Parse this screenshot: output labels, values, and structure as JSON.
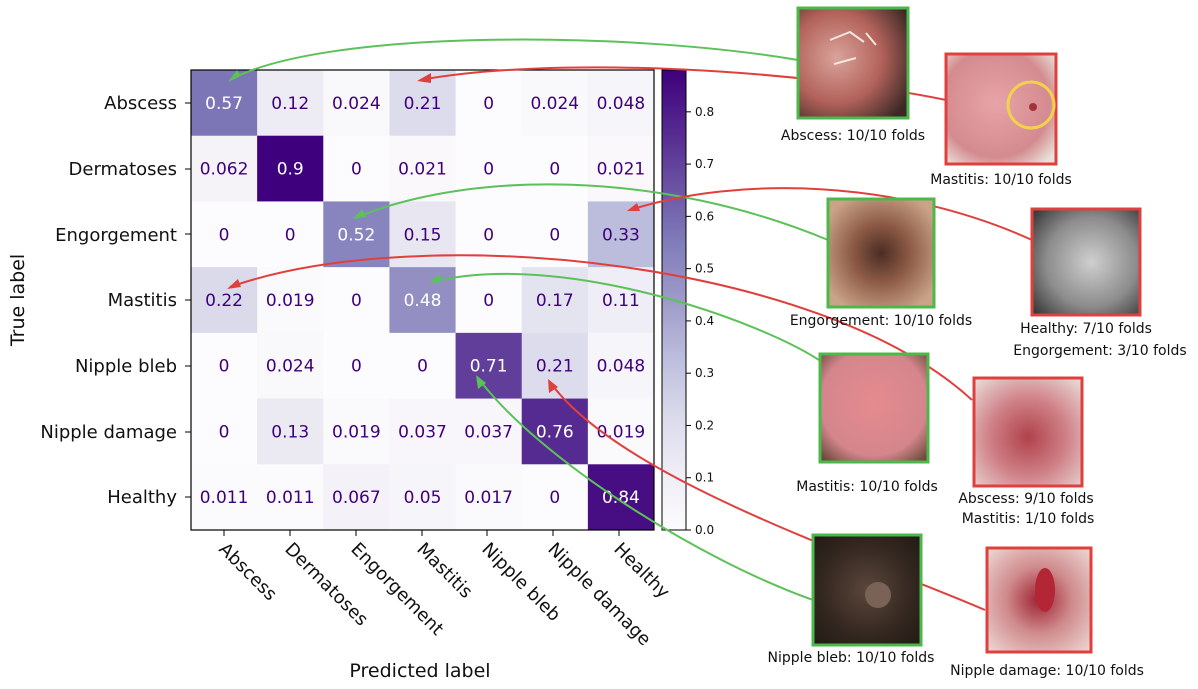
{
  "chart_data": {
    "type": "heatmap",
    "title": "",
    "xlabel": "Predicted label",
    "ylabel": "True label",
    "labels": [
      "Abscess",
      "Dermatoses",
      "Engorgement",
      "Mastitis",
      "Nipple bleb",
      "Nipple damage",
      "Healthy"
    ],
    "values": [
      [
        "0.57",
        "0.12",
        "0.024",
        "0.21",
        "0",
        "0.024",
        "0.048"
      ],
      [
        "0.062",
        "0.9",
        "0",
        "0.021",
        "0",
        "0",
        "0.021"
      ],
      [
        "0",
        "0",
        "0.52",
        "0.15",
        "0",
        "0",
        "0.33"
      ],
      [
        "0.22",
        "0.019",
        "0",
        "0.48",
        "0",
        "0.17",
        "0.11"
      ],
      [
        "0",
        "0.024",
        "0",
        "0",
        "0.71",
        "0.21",
        "0.048"
      ],
      [
        "0",
        "0.13",
        "0.019",
        "0.037",
        "0.037",
        "0.76",
        "0.019"
      ],
      [
        "0.011",
        "0.011",
        "0.067",
        "0.05",
        "0.017",
        "0",
        "0.84"
      ]
    ],
    "colormap": "Purples",
    "color_range": [
      0,
      0.88
    ],
    "colorbar_ticks": [
      "0.0",
      "0.1",
      "0.2",
      "0.3",
      "0.4",
      "0.5",
      "0.6",
      "0.7",
      "0.8"
    ]
  },
  "examples": [
    {
      "id": "abscess",
      "status": "correct",
      "captions": [
        "Abscess: 10/10 folds"
      ],
      "target_row": 0,
      "target_col": 0
    },
    {
      "id": "mastitis-1",
      "status": "wrong",
      "captions": [
        "Mastitis: 10/10 folds"
      ],
      "target_row": 0,
      "target_col": 3
    },
    {
      "id": "engorgement",
      "status": "correct",
      "captions": [
        "Engorgement: 10/10 folds"
      ],
      "target_row": 2,
      "target_col": 2
    },
    {
      "id": "healthy",
      "status": "wrong",
      "captions": [
        "Healthy: 7/10 folds",
        "Engorgement: 3/10 folds"
      ],
      "target_row": 2,
      "target_col": 6
    },
    {
      "id": "mastitis-2",
      "status": "correct",
      "captions": [
        "Mastitis: 10/10 folds"
      ],
      "target_row": 3,
      "target_col": 3
    },
    {
      "id": "abscess-mastitis",
      "status": "wrong",
      "captions": [
        "Abscess: 9/10 folds",
        "Mastitis: 1/10 folds"
      ],
      "target_row": 3,
      "target_col": 0
    },
    {
      "id": "nipple-bleb",
      "status": "correct",
      "captions": [
        "Nipple bleb: 10/10 folds"
      ],
      "target_row": 4,
      "target_col": 4
    },
    {
      "id": "nipple-damage",
      "status": "wrong",
      "captions": [
        "Nipple damage: 10/10 folds"
      ],
      "target_row": 4,
      "target_col": 5
    }
  ],
  "colors": {
    "correct": "#5cc15a",
    "wrong": "#e0403d",
    "text_dark": "#3f007d",
    "text_light": "#ffffff"
  }
}
